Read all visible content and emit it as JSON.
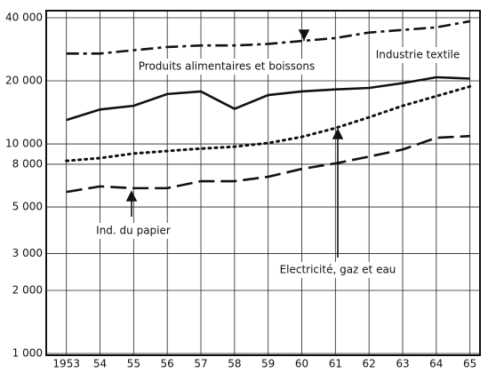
{
  "chart_data": {
    "type": "line",
    "ylog": true,
    "grid": true,
    "color": "#111111",
    "x": [
      1953,
      1954,
      1955,
      1956,
      1957,
      1958,
      1959,
      1960,
      1961,
      1962,
      1963,
      1964,
      1965
    ],
    "xlim": [
      1952.4,
      1965.3
    ],
    "xticks": [
      {
        "value": 1953,
        "label": "1953"
      },
      {
        "value": 1954,
        "label": "54"
      },
      {
        "value": 1955,
        "label": "55"
      },
      {
        "value": 1956,
        "label": "56"
      },
      {
        "value": 1957,
        "label": "57"
      },
      {
        "value": 1958,
        "label": "58"
      },
      {
        "value": 1959,
        "label": "59"
      },
      {
        "value": 1960,
        "label": "60"
      },
      {
        "value": 1961,
        "label": "61"
      },
      {
        "value": 1962,
        "label": "62"
      },
      {
        "value": 1963,
        "label": "63"
      },
      {
        "value": 1964,
        "label": "64"
      },
      {
        "value": 1965,
        "label": "65"
      }
    ],
    "ylim": [
      1000,
      40000
    ],
    "yticks": [
      {
        "value": 1000,
        "label": "1 000"
      },
      {
        "value": 2000,
        "label": "2 000"
      },
      {
        "value": 3000,
        "label": "3 000"
      },
      {
        "value": 5000,
        "label": "5 000"
      },
      {
        "value": 8000,
        "label": "8 000"
      },
      {
        "value": 10000,
        "label": "10 000"
      },
      {
        "value": 20000,
        "label": "20 000"
      },
      {
        "value": 40000,
        "label": "40 000"
      }
    ],
    "series": [
      {
        "name": "Produits alimentaires et boissons",
        "dash": "dashdot",
        "values": [
          27000,
          27000,
          28000,
          29000,
          29500,
          29500,
          30000,
          31000,
          32000,
          34000,
          35000,
          36000,
          38500
        ]
      },
      {
        "name": "Industrie textile",
        "dash": "solid",
        "values": [
          13000,
          14600,
          15200,
          17300,
          17800,
          14700,
          17100,
          17800,
          18200,
          18500,
          19500,
          20800,
          20500
        ]
      },
      {
        "name": "Electricité, gaz et eau",
        "dash": "dotted",
        "values": [
          8300,
          8560,
          9000,
          9250,
          9500,
          9700,
          10100,
          10800,
          11900,
          13400,
          15200,
          16900,
          18800
        ]
      },
      {
        "name": "Ind. du papier",
        "dash": "longdash",
        "values": [
          5900,
          6270,
          6150,
          6150,
          6640,
          6640,
          6970,
          7600,
          8070,
          8700,
          9400,
          10700,
          10900
        ]
      }
    ]
  }
}
